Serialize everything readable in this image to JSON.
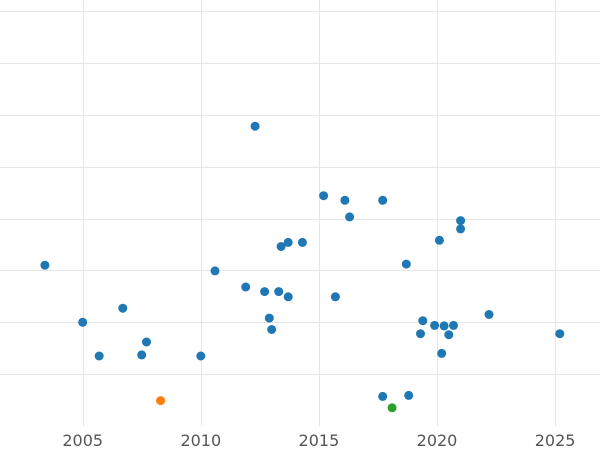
{
  "chart_data": {
    "type": "scatter",
    "title": "",
    "xlabel": "",
    "ylabel": "",
    "x_ticks": [
      "2005",
      "2010",
      "2015",
      "2020",
      "2025"
    ],
    "x_tick_values": [
      2005,
      2010,
      2015,
      2020,
      2025
    ],
    "xlim": [
      2001.5,
      2026.9
    ],
    "ylim": [
      0,
      8
    ],
    "y_gridlines": [
      1,
      2,
      3,
      4,
      5,
      6,
      7,
      8
    ],
    "y_tick_labels_visible": false,
    "grid": true,
    "legend": "none",
    "colors": {
      "blue": "#1f77b4",
      "orange": "#ff7f0e",
      "green": "#2ca02c",
      "grid": "#e6e6e6",
      "tick_text": "#555555"
    },
    "series": [
      {
        "color_key": "blue",
        "points": [
          {
            "x": 2003.4,
            "y": 3.1
          },
          {
            "x": 2005.0,
            "y": 2.0
          },
          {
            "x": 2005.7,
            "y": 1.35
          },
          {
            "x": 2006.7,
            "y": 2.27
          },
          {
            "x": 2007.5,
            "y": 1.37
          },
          {
            "x": 2007.7,
            "y": 1.62
          },
          {
            "x": 2010.0,
            "y": 1.35
          },
          {
            "x": 2010.6,
            "y": 2.99
          },
          {
            "x": 2011.9,
            "y": 2.68
          },
          {
            "x": 2012.3,
            "y": 5.78
          },
          {
            "x": 2012.7,
            "y": 2.59
          },
          {
            "x": 2012.9,
            "y": 2.08
          },
          {
            "x": 2013.0,
            "y": 1.86
          },
          {
            "x": 2013.3,
            "y": 2.59
          },
          {
            "x": 2013.4,
            "y": 3.46
          },
          {
            "x": 2013.7,
            "y": 3.54
          },
          {
            "x": 2013.7,
            "y": 2.49
          },
          {
            "x": 2014.3,
            "y": 3.54
          },
          {
            "x": 2015.2,
            "y": 4.44
          },
          {
            "x": 2015.7,
            "y": 2.49
          },
          {
            "x": 2016.1,
            "y": 4.35
          },
          {
            "x": 2016.3,
            "y": 4.03
          },
          {
            "x": 2017.7,
            "y": 4.35
          },
          {
            "x": 2017.7,
            "y": 0.57
          },
          {
            "x": 2018.7,
            "y": 3.12
          },
          {
            "x": 2018.8,
            "y": 0.59
          },
          {
            "x": 2019.3,
            "y": 1.78
          },
          {
            "x": 2019.4,
            "y": 2.03
          },
          {
            "x": 2019.9,
            "y": 1.94
          },
          {
            "x": 2020.1,
            "y": 3.58
          },
          {
            "x": 2020.2,
            "y": 1.4
          },
          {
            "x": 2020.3,
            "y": 1.93
          },
          {
            "x": 2020.5,
            "y": 1.76
          },
          {
            "x": 2020.7,
            "y": 1.94
          },
          {
            "x": 2021.0,
            "y": 3.8
          },
          {
            "x": 2021.0,
            "y": 3.96
          },
          {
            "x": 2022.2,
            "y": 2.15
          },
          {
            "x": 2025.2,
            "y": 1.78
          }
        ]
      },
      {
        "color_key": "orange",
        "points": [
          {
            "x": 2008.3,
            "y": 0.49
          }
        ]
      },
      {
        "color_key": "green",
        "points": [
          {
            "x": 2018.1,
            "y": 0.35
          }
        ]
      }
    ]
  }
}
